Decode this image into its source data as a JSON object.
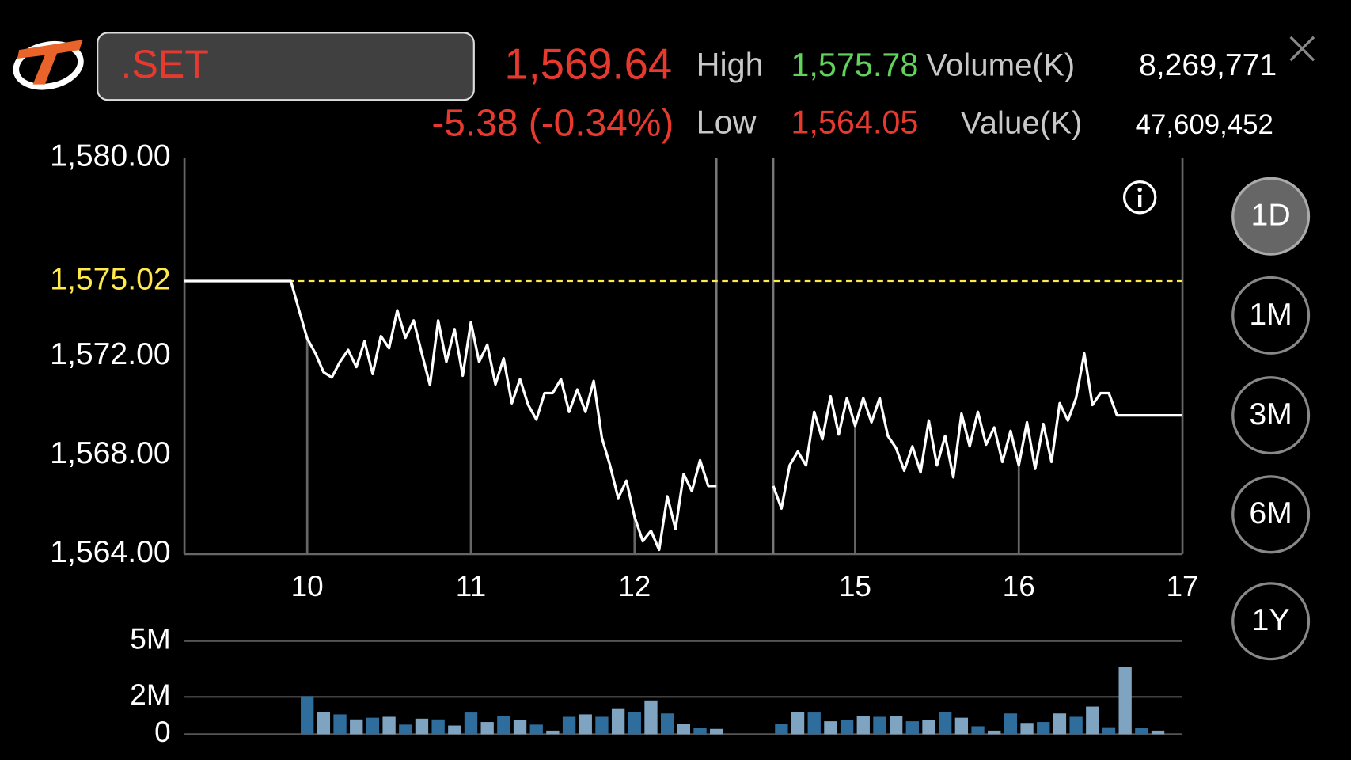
{
  "header": {
    "symbol": ".SET",
    "price": "1,569.64",
    "change": "-5.38 (-0.34%)",
    "high_label": "High",
    "high": "1,575.78",
    "low_label": "Low",
    "low": "1,564.05",
    "volume_label": "Volume(K)",
    "volume": "8,269,771",
    "value_label": "Value(K)",
    "value": "47,609,452"
  },
  "periods": [
    "1D",
    "1M",
    "3M",
    "6M",
    "1Y"
  ],
  "selected_period": "1D",
  "chart_data": [
    {
      "type": "line",
      "color": "#ffffff",
      "x": [
        9.25,
        9.9,
        9.95,
        10,
        10.05,
        10.1,
        10.15,
        10.2,
        10.25,
        10.3,
        10.35,
        10.4,
        10.45,
        10.5,
        10.55,
        10.6,
        10.65,
        10.7,
        10.75,
        10.8,
        10.85,
        10.9,
        10.95,
        11,
        11.05,
        11.1,
        11.15,
        11.2,
        11.25,
        11.3,
        11.35,
        11.4,
        11.45,
        11.5,
        11.55,
        11.6,
        11.65,
        11.7,
        11.75,
        11.8,
        11.85,
        11.9,
        11.95,
        12,
        12.05,
        12.1,
        12.15,
        12.2,
        12.25,
        12.3,
        12.35,
        12.4,
        12.45,
        12.5,
        13.5,
        14.5,
        14.55,
        14.6,
        14.65,
        14.7,
        14.75,
        14.8,
        14.85,
        14.9,
        14.95,
        15,
        15.05,
        15.1,
        15.15,
        15.2,
        15.25,
        15.3,
        15.35,
        15.4,
        15.45,
        15.5,
        15.55,
        15.6,
        15.65,
        15.7,
        15.75,
        15.8,
        15.85,
        15.9,
        15.95,
        16,
        16.05,
        16.1,
        16.15,
        16.2,
        16.25,
        16.3,
        16.35,
        16.4,
        16.45,
        16.5,
        16.55,
        16.6,
        17
      ],
      "values": [
        1575.02,
        1575.02,
        1573.84,
        1572.7,
        1572.1,
        1571.34,
        1571.13,
        1571.76,
        1572.24,
        1571.55,
        1572.59,
        1571.27,
        1572.8,
        1572.31,
        1573.84,
        1572.73,
        1573.43,
        1572.1,
        1570.82,
        1573.43,
        1571.76,
        1573.08,
        1571.2,
        1573.36,
        1571.76,
        1572.45,
        1570.85,
        1571.9,
        1570.09,
        1571.06,
        1570.02,
        1569.43,
        1570.5,
        1570.5,
        1571.06,
        1569.74,
        1570.64,
        1569.74,
        1570.99,
        1568.7,
        1567.58,
        1566.26,
        1566.96,
        1565.5,
        1564.52,
        1564.94,
        1564.17,
        1566.33,
        1565.01,
        1567.23,
        1566.54,
        1567.79,
        1566.75,
        1566.75,
        null,
        1566.75,
        1565.84,
        1567.58,
        1568.14,
        1567.58,
        1569.74,
        1568.63,
        1570.37,
        1568.83,
        1570.3,
        1569.18,
        1570.3,
        1569.32,
        1570.3,
        1568.77,
        1568.28,
        1567.37,
        1568.35,
        1567.3,
        1569.39,
        1567.58,
        1568.77,
        1567.1,
        1569.67,
        1568.35,
        1569.74,
        1568.42,
        1569.11,
        1567.72,
        1568.97,
        1567.58,
        1569.32,
        1567.44,
        1569.25,
        1567.72,
        1570.09,
        1569.39,
        1570.3,
        1572.1,
        1570.02,
        1570.5,
        1570.5,
        1569.6,
        1569.6
      ],
      "xlim": [
        9.25,
        17
      ],
      "x_break": [
        12.5,
        14.5
      ],
      "xticks": [
        10,
        11,
        12,
        15,
        16,
        17
      ],
      "ylim": [
        1564,
        1580
      ],
      "yticks": [
        {
          "value": 1564,
          "label": "1,564.00"
        },
        {
          "value": 1568,
          "label": "1,568.00"
        },
        {
          "value": 1572,
          "label": "1,572.00"
        },
        {
          "value": 1580,
          "label": "1,580.00"
        }
      ],
      "reference": {
        "value": 1575.02,
        "label": "1,575.02",
        "color": "#ffe94d"
      }
    },
    {
      "type": "bar",
      "colors": [
        "#2f6d9c",
        "#7fa4c2"
      ],
      "x": [
        10,
        10.1,
        10.2,
        10.3,
        10.4,
        10.5,
        10.6,
        10.7,
        10.8,
        10.9,
        11,
        11.1,
        11.2,
        11.3,
        11.4,
        11.5,
        11.6,
        11.7,
        11.8,
        11.9,
        12,
        12.1,
        12.2,
        12.3,
        12.4,
        12.5,
        14.55,
        14.65,
        14.75,
        14.85,
        14.95,
        15.05,
        15.15,
        15.25,
        15.35,
        15.45,
        15.55,
        15.65,
        15.75,
        15.85,
        15.95,
        16.05,
        16.15,
        16.25,
        16.35,
        16.45,
        16.55,
        16.65,
        16.75,
        16.85
      ],
      "values": [
        2.04,
        1.2,
        1.06,
        0.79,
        0.88,
        0.93,
        0.51,
        0.83,
        0.79,
        0.46,
        1.16,
        0.65,
        0.97,
        0.74,
        0.51,
        0.19,
        0.93,
        1.06,
        0.93,
        1.39,
        1.2,
        1.81,
        1.11,
        0.56,
        0.32,
        0.28,
        0.56,
        1.2,
        1.16,
        0.69,
        0.74,
        0.97,
        0.93,
        0.97,
        0.69,
        0.74,
        1.2,
        0.88,
        0.42,
        0.19,
        1.11,
        0.6,
        0.65,
        1.11,
        0.93,
        1.48,
        0.37,
        3.61,
        0.32,
        0.19
      ],
      "ylim": [
        0,
        5
      ],
      "yticks": [
        0,
        {
          "value": 2,
          "label": "2M"
        },
        {
          "value": 5,
          "label": "5M"
        }
      ]
    }
  ]
}
